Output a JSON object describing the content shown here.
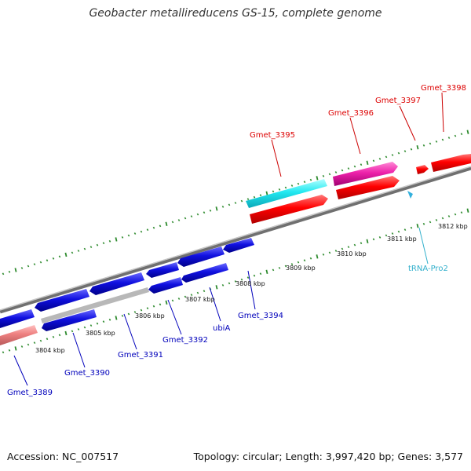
{
  "title": "Geobacter metallireducens GS-15, complete genome",
  "footer": {
    "accession": "Accession: NC_007517",
    "topology": "Topology: circular; Length: 3,997,420 bp; Genes: 3,577"
  },
  "colors": {
    "backbone": "#8a8a8a",
    "tick": "#2e8b2e",
    "forward_gene": "#ff0000",
    "reverse_gene": "#1a1ae0",
    "pseudo_gene": "#e88080",
    "trna": "#33cccc",
    "rrna_like": "#ee33aa",
    "label_red": "#dd0000",
    "label_blue": "#0000bb",
    "label_cyan": "#33b0cc"
  },
  "tick_labels": [
    "3804 kbp",
    "3805 kbp",
    "3806 kbp",
    "3807 kbp",
    "3808 kbp",
    "3809 kbp",
    "3810 kbp",
    "3811 kbp",
    "3812 kbp"
  ],
  "gene_labels": [
    {
      "text": "Gmet_3395",
      "color": "red"
    },
    {
      "text": "Gmet_3396",
      "color": "red"
    },
    {
      "text": "Gmet_3397",
      "color": "red"
    },
    {
      "text": "Gmet_3398",
      "color": "red"
    },
    {
      "text": "tRNA-Pro2",
      "color": "cyan"
    },
    {
      "text": "Gmet_3394",
      "color": "blue"
    },
    {
      "text": "ubiA",
      "color": "blue"
    },
    {
      "text": "Gmet_3392",
      "color": "blue"
    },
    {
      "text": "Gmet_3391",
      "color": "blue"
    },
    {
      "text": "Gmet_3390",
      "color": "blue"
    },
    {
      "text": "Gmet_3389",
      "color": "blue"
    }
  ]
}
